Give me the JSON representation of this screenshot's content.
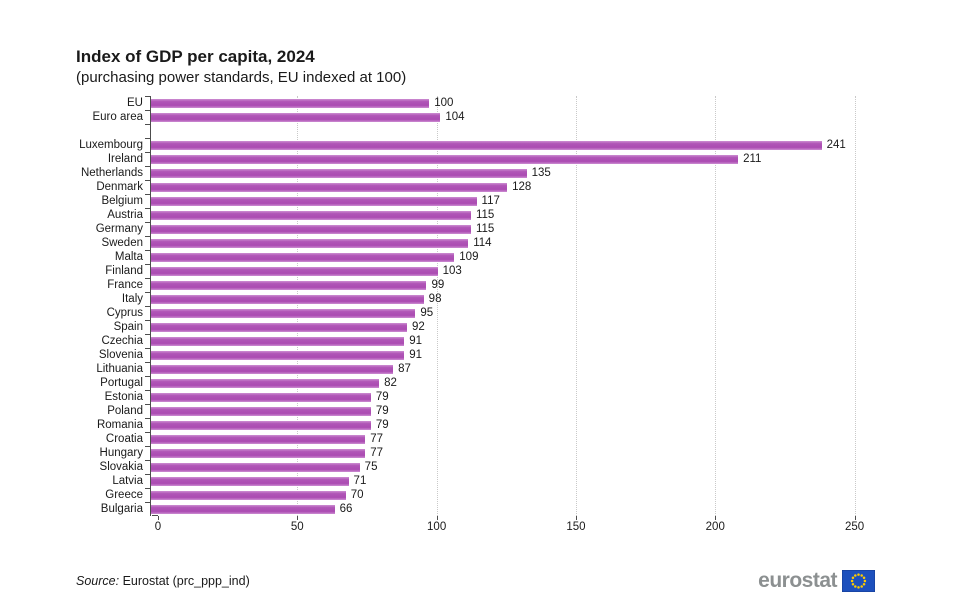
{
  "header": {
    "title": "Index of GDP per capita, 2024",
    "subtitle": "(purchasing power standards, EU indexed at 100)"
  },
  "chart_data": {
    "type": "bar",
    "orientation": "horizontal",
    "title": "Index of GDP per capita, 2024",
    "subtitle": "(purchasing power standards, EU indexed at 100)",
    "categories": [
      "EU",
      "Euro area",
      "Luxembourg",
      "Ireland",
      "Netherlands",
      "Denmark",
      "Belgium",
      "Austria",
      "Germany",
      "Sweden",
      "Malta",
      "Finland",
      "France",
      "Italy",
      "Cyprus",
      "Spain",
      "Czechia",
      "Slovenia",
      "Lithuania",
      "Portugal",
      "Estonia",
      "Poland",
      "Romania",
      "Croatia",
      "Hungary",
      "Slovakia",
      "Latvia",
      "Greece",
      "Bulgaria"
    ],
    "values": [
      100,
      104,
      241,
      211,
      135,
      128,
      117,
      115,
      115,
      114,
      109,
      103,
      99,
      98,
      95,
      92,
      91,
      91,
      87,
      82,
      79,
      79,
      79,
      77,
      77,
      75,
      71,
      70,
      66
    ],
    "gap_after_index": 1,
    "xlim": [
      0,
      262
    ],
    "xticks": [
      0,
      50,
      100,
      150,
      200,
      250
    ],
    "grid": "vertical-dotted",
    "bar_color": "#b153b8",
    "gridline_color": "#c9c9c9",
    "axis_color": "#4d4d4d",
    "legend": "none"
  },
  "footer": {
    "source_label": "Source:",
    "source_text": "Eurostat (prc_ppp_ind)",
    "logo_text": "eurostat",
    "logo_text_color": "#8c9091",
    "flag_color": "#1d50bd",
    "flag_star_color": "#ffcc00"
  }
}
